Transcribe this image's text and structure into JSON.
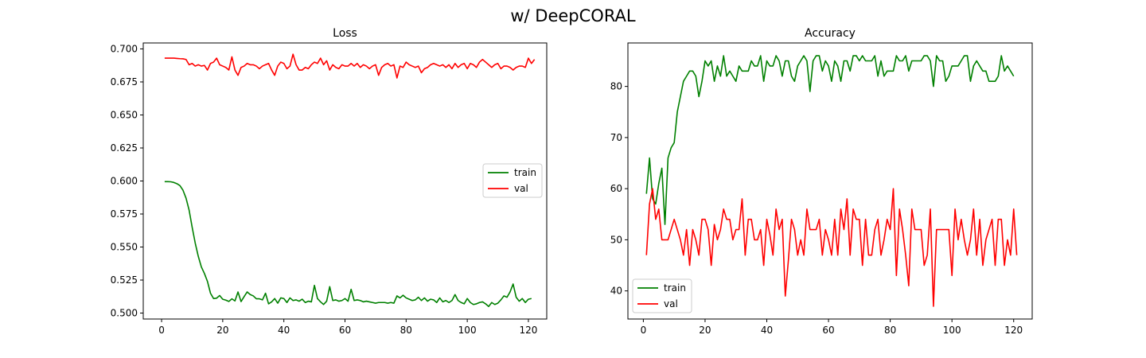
{
  "figure": {
    "suptitle": "w/ DeepCORAL"
  },
  "chart_data": [
    {
      "type": "line",
      "title": "Loss",
      "xlabel": "",
      "ylabel": "",
      "xlim": [
        -6,
        126
      ],
      "ylim": [
        0.4955,
        0.7045
      ],
      "xticks": [
        0,
        20,
        40,
        60,
        80,
        100,
        120
      ],
      "yticks": [
        0.5,
        0.525,
        0.55,
        0.575,
        0.6,
        0.625,
        0.65,
        0.675,
        0.7
      ],
      "ytick_labels": [
        "0.500",
        "0.525",
        "0.550",
        "0.575",
        "0.600",
        "0.625",
        "0.650",
        "0.675",
        "0.700"
      ],
      "grid": false,
      "legend_position": "center-right",
      "series": [
        {
          "name": "train",
          "color": "#008000",
          "x_start": 1,
          "values": [
            0.5995,
            0.5995,
            0.5994,
            0.5989,
            0.598,
            0.5965,
            0.593,
            0.587,
            0.578,
            0.565,
            0.553,
            0.543,
            0.535,
            0.53,
            0.524,
            0.515,
            0.511,
            0.5113,
            0.5133,
            0.5105,
            0.5098,
            0.5088,
            0.5108,
            0.5092,
            0.516,
            0.5087,
            0.5125,
            0.516,
            0.514,
            0.513,
            0.5108,
            0.5108,
            0.51,
            0.515,
            0.507,
            0.5085,
            0.511,
            0.5075,
            0.5115,
            0.511,
            0.508,
            0.5115,
            0.5095,
            0.51,
            0.509,
            0.5105,
            0.508,
            0.509,
            0.5085,
            0.521,
            0.511,
            0.5085,
            0.5065,
            0.509,
            0.52,
            0.5095,
            0.51,
            0.509,
            0.5095,
            0.511,
            0.509,
            0.518,
            0.5095,
            0.51,
            0.5095,
            0.5085,
            0.509,
            0.5085,
            0.508,
            0.5075,
            0.508,
            0.508,
            0.508,
            0.5075,
            0.508,
            0.5075,
            0.513,
            0.5115,
            0.5135,
            0.5115,
            0.5105,
            0.5095,
            0.51,
            0.512,
            0.5095,
            0.5115,
            0.509,
            0.5105,
            0.51,
            0.508,
            0.5115,
            0.5085,
            0.5095,
            0.508,
            0.5095,
            0.514,
            0.5095,
            0.508,
            0.507,
            0.511,
            0.508,
            0.5065,
            0.507,
            0.508,
            0.5085,
            0.507,
            0.505,
            0.508,
            0.5065,
            0.5075,
            0.51,
            0.513,
            0.512,
            0.516,
            0.522,
            0.512,
            0.509,
            0.511,
            0.508,
            0.5105,
            0.511
          ]
        },
        {
          "name": "val",
          "color": "#ff0000",
          "x_start": 1,
          "values": [
            0.693,
            0.693,
            0.693,
            0.693,
            0.6928,
            0.6926,
            0.6925,
            0.692,
            0.688,
            0.689,
            0.687,
            0.688,
            0.687,
            0.6875,
            0.684,
            0.689,
            0.69,
            0.693,
            0.688,
            0.687,
            0.686,
            0.684,
            0.694,
            0.684,
            0.68,
            0.686,
            0.687,
            0.689,
            0.688,
            0.688,
            0.687,
            0.685,
            0.687,
            0.688,
            0.689,
            0.684,
            0.68,
            0.687,
            0.69,
            0.689,
            0.685,
            0.687,
            0.696,
            0.688,
            0.684,
            0.684,
            0.686,
            0.685,
            0.688,
            0.69,
            0.689,
            0.693,
            0.688,
            0.691,
            0.684,
            0.688,
            0.686,
            0.685,
            0.688,
            0.687,
            0.687,
            0.689,
            0.687,
            0.689,
            0.686,
            0.688,
            0.687,
            0.685,
            0.687,
            0.688,
            0.68,
            0.686,
            0.688,
            0.689,
            0.687,
            0.688,
            0.678,
            0.687,
            0.686,
            0.69,
            0.688,
            0.687,
            0.686,
            0.687,
            0.682,
            0.685,
            0.686,
            0.688,
            0.689,
            0.688,
            0.687,
            0.688,
            0.686,
            0.688,
            0.685,
            0.689,
            0.686,
            0.688,
            0.689,
            0.685,
            0.689,
            0.688,
            0.686,
            0.69,
            0.692,
            0.69,
            0.688,
            0.686,
            0.688,
            0.689,
            0.685,
            0.687,
            0.687,
            0.686,
            0.684,
            0.686,
            0.687,
            0.687,
            0.686,
            0.693,
            0.689,
            0.692
          ]
        }
      ]
    },
    {
      "type": "line",
      "title": "Accuracy",
      "xlabel": "",
      "ylabel": "",
      "xlim": [
        -5,
        126
      ],
      "ylim": [
        34.5,
        88.5
      ],
      "xticks": [
        0,
        20,
        40,
        60,
        80,
        100,
        120
      ],
      "yticks": [
        40,
        50,
        60,
        70,
        80
      ],
      "ytick_labels": [
        "40",
        "50",
        "60",
        "70",
        "80"
      ],
      "grid": false,
      "legend_position": "lower-left",
      "series": [
        {
          "name": "train",
          "color": "#008000",
          "x_start": 1,
          "values": [
            59,
            66,
            58,
            57,
            61,
            64,
            53,
            66,
            68,
            69,
            75,
            78,
            81,
            82,
            83,
            83,
            82,
            78,
            81,
            85,
            84,
            85,
            81,
            84,
            82,
            86,
            82,
            83,
            82,
            81,
            84,
            83,
            83,
            83,
            85,
            84,
            84,
            86,
            81,
            85,
            84,
            84,
            86,
            85,
            82,
            85,
            85,
            82,
            81,
            84,
            85,
            86,
            85,
            79,
            85,
            86,
            86,
            83,
            85,
            84,
            81,
            85,
            84,
            81,
            85,
            85,
            83,
            86,
            86,
            85,
            86,
            85,
            85,
            85,
            86,
            82,
            85,
            82,
            83,
            83,
            83,
            86,
            85,
            85,
            86,
            83,
            85,
            85,
            85,
            85,
            86,
            86,
            85,
            80,
            86,
            85,
            85,
            81,
            82,
            84,
            84,
            84,
            85,
            86,
            86,
            81,
            84,
            85,
            84,
            83,
            83,
            81,
            81,
            81,
            82,
            86,
            83,
            84,
            83,
            82
          ]
        },
        {
          "name": "val",
          "color": "#ff0000",
          "x_start": 1,
          "values": [
            47,
            57,
            60,
            54,
            56,
            50,
            50,
            50,
            52,
            54,
            52,
            50,
            47,
            52,
            45,
            52,
            50,
            47,
            54,
            54,
            52,
            45,
            53,
            50,
            52,
            56,
            54,
            54,
            50,
            52,
            52,
            58,
            47,
            54,
            54,
            50,
            50,
            52,
            45,
            54,
            51,
            47,
            56,
            52,
            54,
            39,
            46,
            54,
            52,
            47,
            50,
            47,
            56,
            52,
            52,
            52,
            54,
            47,
            52,
            50,
            47,
            54,
            47,
            56,
            52,
            58,
            47,
            56,
            54,
            54,
            45,
            54,
            47,
            47,
            52,
            54,
            47,
            50,
            54,
            52,
            60,
            43,
            56,
            52,
            47,
            41,
            56,
            52,
            52,
            52,
            45,
            47,
            56,
            37,
            52,
            52,
            52,
            52,
            52,
            43,
            56,
            50,
            54,
            50,
            47,
            50,
            56,
            47,
            54,
            45,
            50,
            52,
            54,
            45,
            54,
            54,
            45,
            50,
            47,
            56,
            47
          ]
        }
      ]
    }
  ]
}
